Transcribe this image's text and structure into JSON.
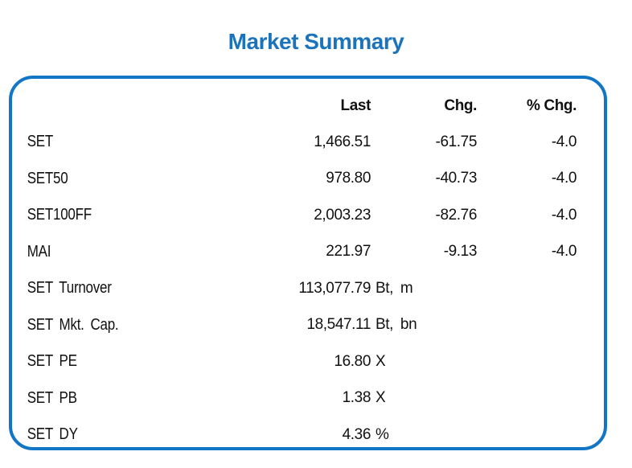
{
  "title": "Market Summary",
  "colors": {
    "accent": "#1276C6",
    "title": "#1B73BC",
    "text": "#111111"
  },
  "chart_data": {
    "type": "table",
    "title": "Market Summary",
    "columns": [
      "",
      "Last",
      "Chg.",
      "% Chg."
    ],
    "rows": [
      {
        "label": "SET",
        "last": "1,466.51",
        "unit": "",
        "chg": "-61.75",
        "pct_chg": "-4.0"
      },
      {
        "label": "SET50",
        "last": "978.80",
        "unit": "",
        "chg": "-40.73",
        "pct_chg": "-4.0"
      },
      {
        "label": "SET100FF",
        "last": "2,003.23",
        "unit": "",
        "chg": "-82.76",
        "pct_chg": "-4.0"
      },
      {
        "label": "MAI",
        "last": "221.97",
        "unit": "",
        "chg": "-9.13",
        "pct_chg": "-4.0"
      },
      {
        "label": "SET Turnover",
        "last": "113,077.79",
        "unit": "Bt, m",
        "chg": "",
        "pct_chg": ""
      },
      {
        "label": "SET Mkt. Cap.",
        "last": "18,547.11",
        "unit": "Bt, bn",
        "chg": "",
        "pct_chg": ""
      },
      {
        "label": "SET PE",
        "last": "16.80",
        "unit": "X",
        "chg": "",
        "pct_chg": ""
      },
      {
        "label": "SET PB",
        "last": "1.38",
        "unit": "X",
        "chg": "",
        "pct_chg": ""
      },
      {
        "label": "SET DY",
        "last": "4.36",
        "unit": "%",
        "chg": "",
        "pct_chg": ""
      }
    ]
  }
}
